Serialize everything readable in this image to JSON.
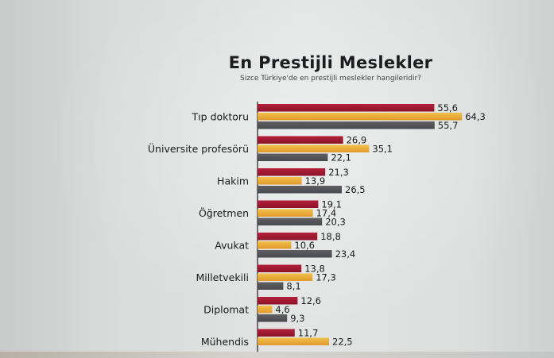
{
  "chart": {
    "title": "En Prestijli Meslekler",
    "subtitle": "Sizce Türkiye'de en prestijli meslekler hangileridir?"
  },
  "chart_data": {
    "type": "bar",
    "orientation": "horizontal",
    "title": "En Prestijli Meslekler",
    "subtitle": "Sizce Türkiye'de en prestijli meslekler hangileridir?",
    "categories": [
      "Tıp doktoru",
      "Üniversite profesörü",
      "Hakim",
      "Öğretmen",
      "Avukat",
      "Milletvekili",
      "Diplomat",
      "Mühendis"
    ],
    "series": [
      {
        "color": "#b3203a",
        "values": [
          55.6,
          26.9,
          21.3,
          19.1,
          18.8,
          13.8,
          12.6,
          11.7
        ]
      },
      {
        "color": "#e0992c",
        "values": [
          64.3,
          35.1,
          13.9,
          17.4,
          10.6,
          17.3,
          4.6,
          22.5
        ]
      },
      {
        "color": "#4a4a4e",
        "values": [
          55.7,
          22.1,
          26.5,
          20.3,
          23.4,
          8.1,
          9.3,
          null
        ]
      }
    ],
    "value_labels": [
      [
        "55,6",
        "26,9",
        "21,3",
        "19,1",
        "18,8",
        "13,8",
        "12,6",
        "11,7"
      ],
      [
        "64,3",
        "35,1",
        "13,9",
        "17,4",
        "10,6",
        "17,3",
        "4,6",
        "22,5"
      ],
      [
        "55,7",
        "22,1",
        "26,5",
        "20,3",
        "23,4",
        "8,1",
        "9,3",
        ""
      ]
    ],
    "xlim": [
      0,
      70
    ],
    "grid": false,
    "legend": "none"
  }
}
